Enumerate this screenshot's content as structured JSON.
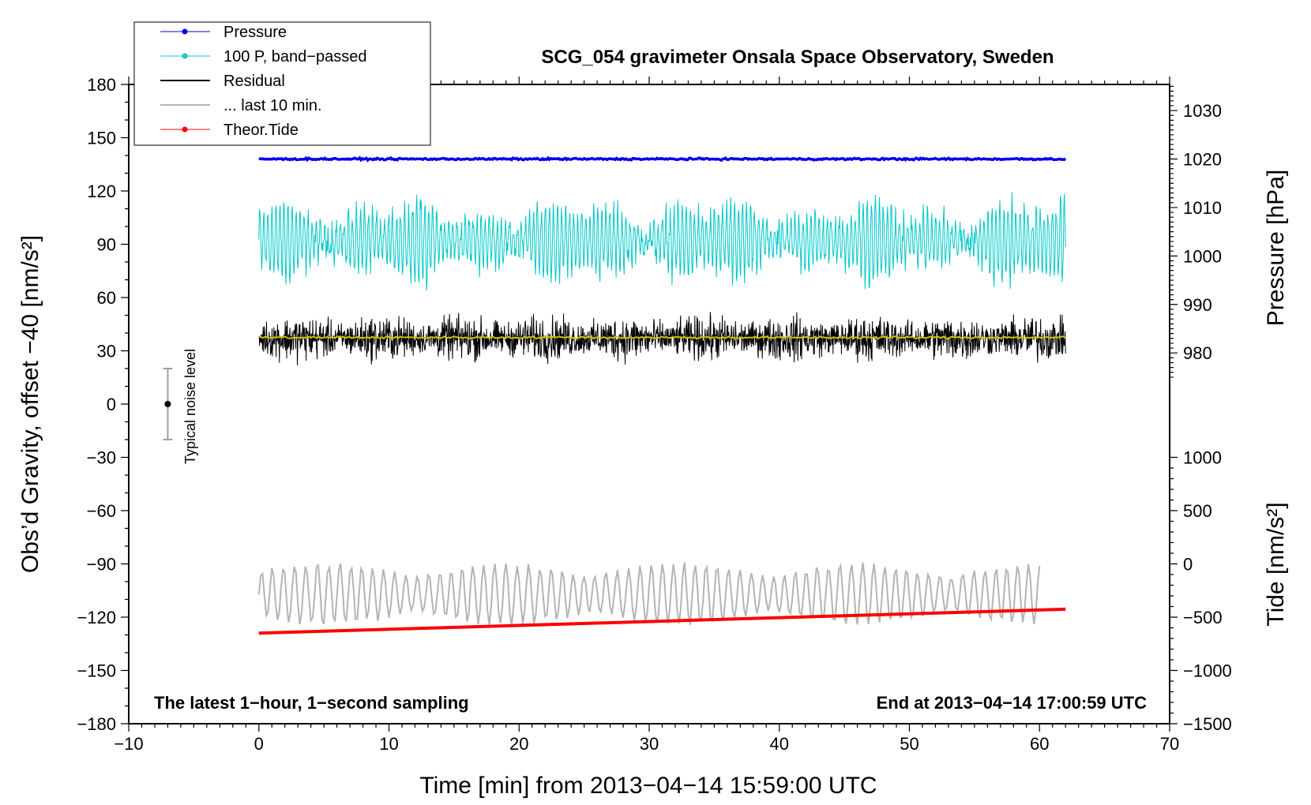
{
  "chart_data": {
    "type": "line",
    "title": "SCG_054 gravimeter Onsala Space Observatory, Sweden",
    "xlabel": "Time [min] from 2013−04−14 15:59:00 UTC",
    "ylabel_left": "Obs’d Gravity, offset −40 [nm/s²]",
    "ylabel_right_top": "Pressure [hPa]",
    "ylabel_right_bottom": "Tide [nm/s²]",
    "xlim": [
      -10,
      70
    ],
    "ylim_left": [
      -180,
      180
    ],
    "x_ticks": [
      "−10",
      "0",
      "10",
      "20",
      "30",
      "40",
      "50",
      "60",
      "70"
    ],
    "y_ticks_left": [
      "180",
      "150",
      "120",
      "90",
      "60",
      "30",
      "0",
      "−30",
      "−60",
      "−90",
      "−120",
      "−150",
      "−180"
    ],
    "pressure_axis": {
      "ticks": [
        "1030",
        "1020",
        "1010",
        "1000",
        "990",
        "980"
      ],
      "values": [
        1030,
        1020,
        1010,
        1000,
        990,
        980
      ],
      "left_value_at_1020": 138,
      "left_per_hpa": 2.73
    },
    "tide_axis": {
      "ticks": [
        "1000",
        "500",
        "0",
        "−500",
        "−1000",
        "−1500"
      ],
      "values": [
        1000,
        500,
        0,
        -500,
        -1000,
        -1500
      ],
      "left_value_at_0": -90,
      "left_per_unit": 0.06
    },
    "legend": [
      {
        "label": "Pressure",
        "color": "#0000ee",
        "marker": true
      },
      {
        "label": "100 P, band−passed",
        "color": "#00c8c8",
        "marker": true
      },
      {
        "label": "Residual",
        "color": "#000000",
        "marker": false
      },
      {
        "label": "... last 10 min.",
        "color": "#b4b4b4",
        "marker": false
      },
      {
        "label": "Theor.Tide",
        "color": "#ff0000",
        "marker": true
      }
    ],
    "annotations": {
      "bottom_left": "The latest 1−hour, 1−second sampling",
      "bottom_right": "End at 2013−04−14 17:00:59 UTC",
      "noise": "Typical noise level"
    },
    "series": [
      {
        "name": "Pressure",
        "color": "#0000ee",
        "x_range": [
          0,
          62
        ],
        "level": 138,
        "amplitude": 1.5
      },
      {
        "name": "100 P, band−passed",
        "color": "#00c8c8",
        "x_range": [
          0,
          62
        ],
        "center": 92,
        "amplitude": 32
      },
      {
        "name": "Residual",
        "color": "#000000",
        "x_range": [
          0,
          62
        ],
        "center": 37,
        "amplitude": 20
      },
      {
        "name": "Residual smoothed",
        "color": "#c8c800",
        "x_range": [
          0,
          62
        ],
        "center": 37.5,
        "amplitude": 1
      },
      {
        "name": "... last 10 min.",
        "color": "#b4b4b4",
        "x_range": [
          0,
          60
        ],
        "center": -107,
        "amplitude": 17
      },
      {
        "name": "Theor.Tide",
        "color": "#ff0000",
        "x_range": [
          0,
          62
        ],
        "start": -129,
        "end": -115.5
      }
    ],
    "noise_bar": {
      "x": -7,
      "center": 0,
      "half_range": 20
    }
  }
}
